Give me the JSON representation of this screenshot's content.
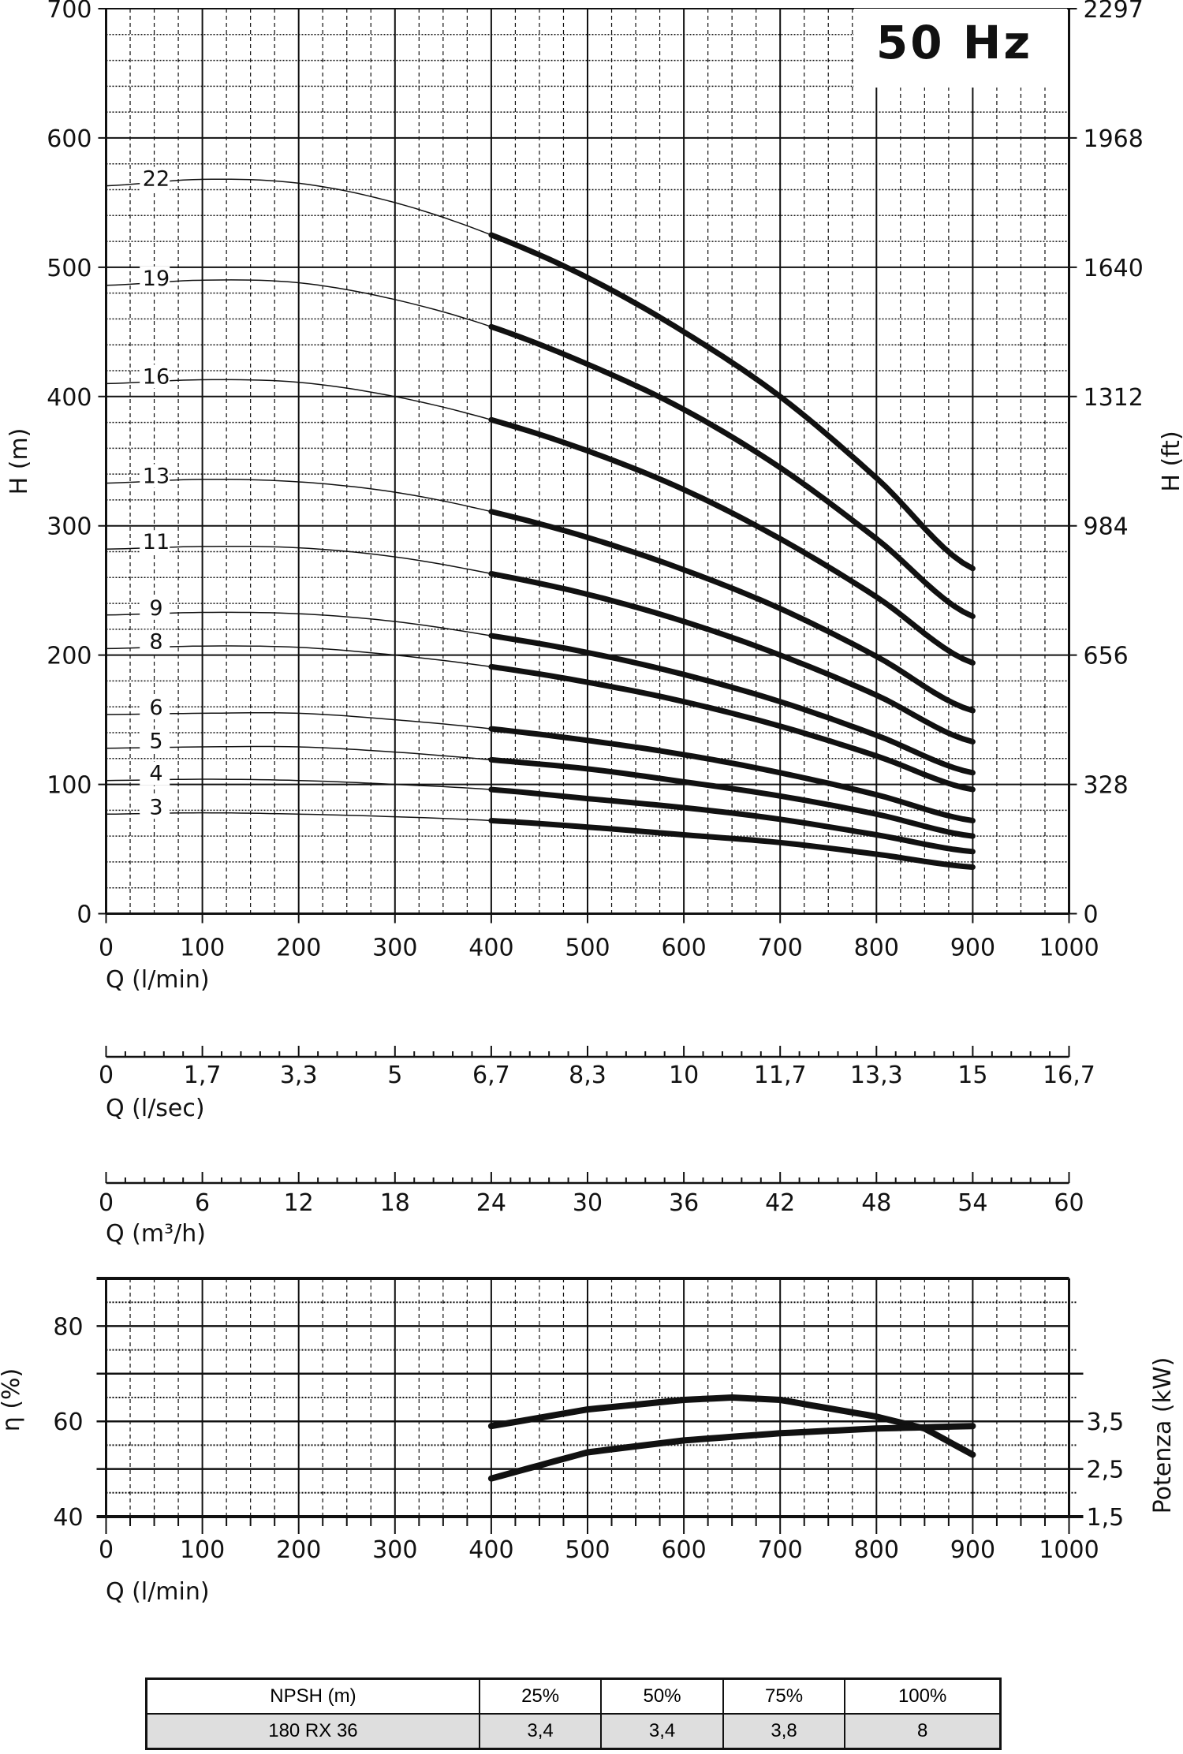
{
  "chart_data": [
    {
      "type": "line",
      "title": "50 Hz",
      "xlabel": "Q (l/min)",
      "ylabel": "H (m)",
      "y2label": "H (ft)",
      "xlim": [
        0,
        1000
      ],
      "ylim": [
        0,
        700
      ],
      "xticks": [
        "0",
        "100",
        "200",
        "300",
        "400",
        "500",
        "600",
        "700",
        "800",
        "900",
        "1000"
      ],
      "yticks": [
        "0",
        "100",
        "200",
        "300",
        "400",
        "500",
        "600",
        "700"
      ],
      "y2ticks": [
        "0",
        "328",
        "656",
        "984",
        "1312",
        "1640",
        "1968",
        "2297"
      ],
      "grid": true,
      "note": "thin line 0-400 l/min, thick line 400-900 l/min",
      "x": [
        0,
        100,
        200,
        300,
        400,
        500,
        600,
        700,
        800,
        900
      ],
      "series": [
        {
          "name": "22",
          "values": [
            563,
            568,
            565,
            550,
            525,
            492,
            450,
            400,
            337,
            267
          ]
        },
        {
          "name": "19",
          "values": [
            486,
            490,
            488,
            475,
            454,
            425,
            390,
            345,
            290,
            230
          ]
        },
        {
          "name": "16",
          "values": [
            410,
            413,
            411,
            400,
            382,
            358,
            328,
            290,
            245,
            194
          ]
        },
        {
          "name": "13",
          "values": [
            333,
            336,
            334,
            326,
            311,
            291,
            266,
            236,
            199,
            157
          ]
        },
        {
          "name": "11",
          "values": [
            282,
            284,
            283,
            276,
            263,
            247,
            226,
            200,
            169,
            133
          ]
        },
        {
          "name": "9",
          "values": [
            231,
            233,
            232,
            226,
            215,
            202,
            185,
            164,
            138,
            109
          ]
        },
        {
          "name": "8",
          "values": [
            205,
            207,
            206,
            200,
            191,
            179,
            164,
            145,
            122,
            96
          ]
        },
        {
          "name": "6",
          "values": [
            154,
            155,
            155,
            150,
            143,
            134,
            123,
            109,
            92,
            72
          ]
        },
        {
          "name": "5",
          "values": [
            128,
            129,
            129,
            125,
            119,
            112,
            102,
            91,
            77,
            60
          ]
        },
        {
          "name": "4",
          "values": [
            103,
            104,
            103,
            100,
            96,
            89,
            82,
            73,
            61,
            48
          ]
        },
        {
          "name": "3",
          "values": [
            77,
            78,
            77,
            75,
            72,
            67,
            61,
            55,
            46,
            36
          ]
        }
      ]
    },
    {
      "type": "axis",
      "xlabel": "Q (l/sec)",
      "ticks": [
        "0",
        "1,7",
        "3,3",
        "5",
        "6,7",
        "8,3",
        "10",
        "11,7",
        "13,3",
        "15",
        "16,7"
      ]
    },
    {
      "type": "axis",
      "xlabel": "Q (m³/h)",
      "ticks": [
        "0",
        "6",
        "12",
        "18",
        "24",
        "30",
        "36",
        "42",
        "48",
        "54",
        "60"
      ]
    },
    {
      "type": "line",
      "xlabel": "Q (l/min)",
      "ylabel": "η (%)",
      "y2label": "Potenza (kW)",
      "xlim": [
        0,
        1000
      ],
      "ylim": [
        40,
        90
      ],
      "y2lim": [
        1.5,
        6.5
      ],
      "xticks": [
        "0",
        "100",
        "200",
        "300",
        "400",
        "500",
        "600",
        "700",
        "800",
        "900",
        "1000"
      ],
      "yticks": [
        "40",
        "60",
        "80"
      ],
      "y2ticks": [
        "1,5",
        "2,5",
        "3,5"
      ],
      "grid": true,
      "series": [
        {
          "name": "efficiency",
          "axis": "left",
          "x": [
            400,
            500,
            600,
            650,
            700,
            800,
            850,
            900
          ],
          "values": [
            59,
            62.5,
            64.5,
            65,
            64.5,
            61,
            58.5,
            53
          ]
        },
        {
          "name": "power",
          "axis": "right",
          "x": [
            400,
            500,
            600,
            700,
            800,
            900
          ],
          "values": [
            2.3,
            2.85,
            3.1,
            3.25,
            3.35,
            3.4
          ]
        }
      ]
    }
  ],
  "npsh_table": {
    "header": [
      "NPSH (m)",
      "25%",
      "50%",
      "75%",
      "100%"
    ],
    "row": [
      "180 RX 36",
      "3,4",
      "3,4",
      "3,8",
      "8"
    ]
  }
}
